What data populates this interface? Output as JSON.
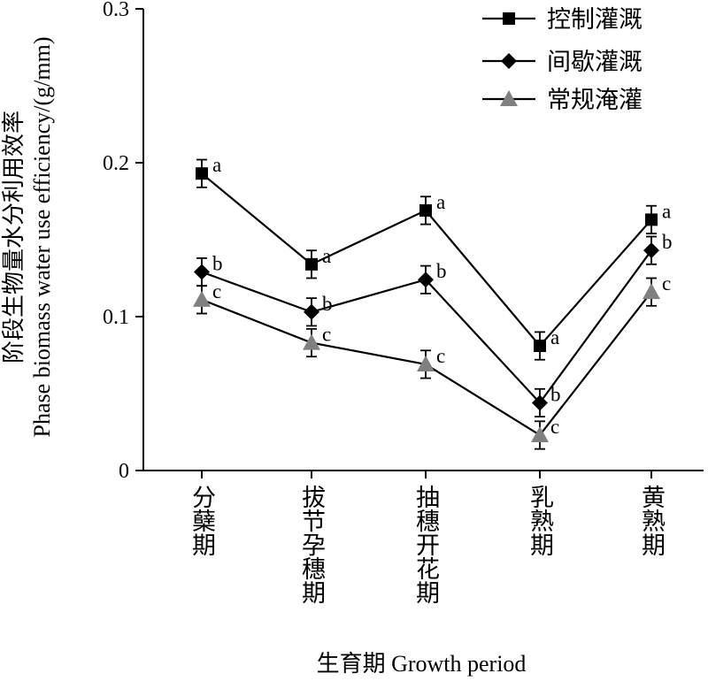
{
  "chart_data": {
    "type": "line",
    "xlabel": "生育期 Growth period",
    "ylabel_cn": "阶段生物量水分利用效率",
    "ylabel_en": "Phase biomass water use efficiency/(g/mm)",
    "ylim": [
      0,
      0.3
    ],
    "yticks": [
      "0",
      "0.1",
      "0.2",
      "0.3"
    ],
    "categories": [
      "分蘖期",
      "拔节孕穗期",
      "抽穗开花期",
      "乳熟期",
      "黄熟期"
    ],
    "legend_position": "top-right",
    "grid": false,
    "series": [
      {
        "name": "控制灌溉",
        "marker": "square",
        "color": "#000000",
        "values": [
          0.193,
          0.134,
          0.169,
          0.081,
          0.163
        ],
        "errors": [
          0.009,
          0.009,
          0.009,
          0.009,
          0.009
        ],
        "labels": [
          "a",
          "a",
          "a",
          "a",
          "a"
        ]
      },
      {
        "name": "间歇灌溉",
        "marker": "diamond",
        "color": "#000000",
        "values": [
          0.129,
          0.103,
          0.124,
          0.044,
          0.143
        ],
        "errors": [
          0.009,
          0.009,
          0.009,
          0.009,
          0.009
        ],
        "labels": [
          "b",
          "b",
          "b",
          "b",
          "b"
        ]
      },
      {
        "name": "常规淹灌",
        "marker": "triangle",
        "color": "#808080",
        "values": [
          0.111,
          0.083,
          0.069,
          0.023,
          0.116
        ],
        "errors": [
          0.009,
          0.009,
          0.009,
          0.009,
          0.009
        ],
        "labels": [
          "c",
          "c",
          "c",
          "c",
          "c"
        ]
      }
    ]
  }
}
